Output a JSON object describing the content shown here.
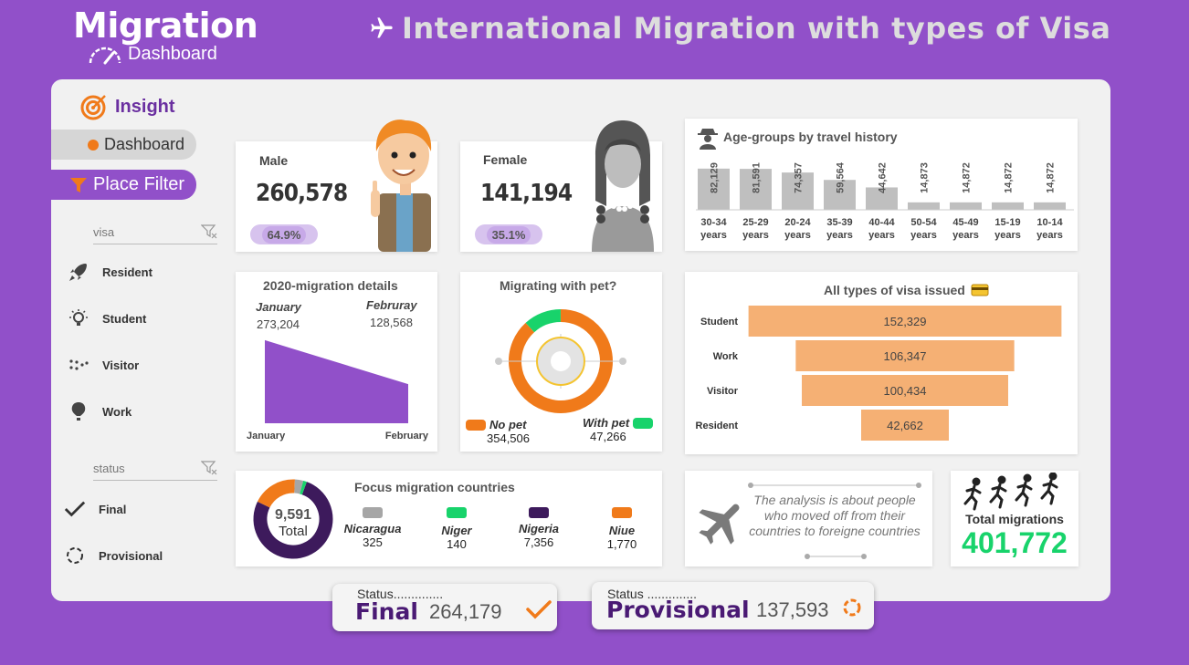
{
  "logo": {
    "title": "Migration",
    "subtitle": "Dashboard"
  },
  "header": {
    "title": "International Migration with types of Visa"
  },
  "sidebar": {
    "insight_label": "Insight",
    "dashboard_label": "Dashboard",
    "filter_label": "Place Filter",
    "visa_slicer": {
      "header": "visa",
      "items": [
        "Resident",
        "Student",
        "Visitor",
        "Work"
      ]
    },
    "status_slicer": {
      "header": "status",
      "items": [
        "Final",
        "Provisional"
      ]
    }
  },
  "kpis": {
    "male": {
      "label": "Male",
      "value": "260,578",
      "percent": "64.9%"
    },
    "female": {
      "label": "Female",
      "value": "141,194",
      "percent": "35.1%"
    }
  },
  "age_groups": {
    "title": "Age-groups by travel history",
    "categories": [
      "30-34 years",
      "25-29 years",
      "20-24 years",
      "35-39 years",
      "40-44 years",
      "50-54 years",
      "45-49 years",
      "15-19 years",
      "10-14 years"
    ],
    "labels": [
      "82,129",
      "81,591",
      "74,357",
      "59,564",
      "44,642",
      "14,873",
      "14,872",
      "14,872",
      "14,872"
    ],
    "values": [
      82129,
      81591,
      74357,
      59564,
      44642,
      14873,
      14872,
      14872,
      14872
    ]
  },
  "migration_2020": {
    "title": "2020-migration details",
    "months": [
      "January",
      "February"
    ],
    "month_headers": [
      "January",
      "Februray"
    ],
    "values": [
      273204,
      128568
    ],
    "value_labels": [
      "273,204",
      "128,568"
    ]
  },
  "pets": {
    "title": "Migrating with pet?",
    "no_pet_label": "No pet",
    "no_pet_value": "354,506",
    "with_pet_label": "With pet",
    "with_pet_value": "47,266",
    "values": [
      354506,
      47266
    ]
  },
  "visa_types": {
    "title": "All types of visa issued",
    "rows": [
      {
        "label": "Student",
        "value": 152329,
        "display": "152,329"
      },
      {
        "label": "Work",
        "value": 106347,
        "display": "106,347"
      },
      {
        "label": "Visitor",
        "value": 100434,
        "display": "100,434"
      },
      {
        "label": "Resident",
        "value": 42662,
        "display": "42,662"
      }
    ]
  },
  "focus_countries": {
    "title": "Focus migration countries",
    "total_value": "9,591",
    "total_label": "Total",
    "countries": [
      {
        "name": "Nicaragua",
        "value": "325",
        "num": 325,
        "color": "#a6a6a6"
      },
      {
        "name": "Niger",
        "value": "140",
        "num": 140,
        "color": "#18d36b"
      },
      {
        "name": "Nigeria",
        "value": "7,356",
        "num": 7356,
        "color": "#3d1a5c"
      },
      {
        "name": "Niue",
        "value": "1,770",
        "num": 1770,
        "color": "#f07a1a"
      }
    ]
  },
  "note": {
    "text": "The analysis is about people who moved off from their countries to foreigne countries"
  },
  "total": {
    "label": "Total migrations",
    "value": "401,772"
  },
  "status_final": {
    "caption": "Status..............",
    "label": "Final",
    "value": "264,179"
  },
  "status_provisional": {
    "caption": "Status ..............",
    "label": "Provisional",
    "value": "137,593"
  },
  "colors": {
    "purple": "#9150c9",
    "orange": "#f07a1a",
    "green": "#18d36b",
    "peach": "#f5b074",
    "dark_purple": "#3d1a5c",
    "gray_bar": "#bfbfbf"
  }
}
